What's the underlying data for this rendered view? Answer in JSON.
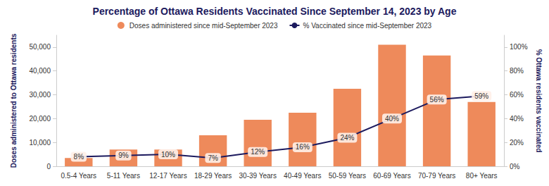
{
  "chart_data": {
    "type": "bar",
    "title": "Percentage of Ottawa Residents Vaccinated Since September 14, 2023 by Age",
    "y_label": "Doses administered to Ottawa residents",
    "y2_label": "% Ottawa residents vaccinated",
    "categories": [
      "0.5-4 Years",
      "5-11 Years",
      "12-17 Years",
      "18-29 Years",
      "30-39 Years",
      "40-49 Years",
      "50-59 Years",
      "60-69 Years",
      "70-79 Years",
      "80+ Years"
    ],
    "series": [
      {
        "name": "Doses administered since mid-September 2023",
        "type": "bar",
        "color": "#ee8a5b",
        "values": [
          3500,
          7000,
          7000,
          13000,
          19500,
          22500,
          32500,
          51000,
          46500,
          27000
        ]
      },
      {
        "name": "% Vaccinated since mid-September 2023",
        "type": "line",
        "axis": "y2",
        "color": "#1c1a5e",
        "marker": "circle",
        "line_style": "solid",
        "data_labels": true,
        "values": [
          8,
          9,
          10,
          7,
          12,
          16,
          24,
          40,
          56,
          59
        ],
        "value_labels": [
          "8%",
          "9%",
          "10%",
          "7%",
          "12%",
          "16%",
          "24%",
          "40%",
          "56%",
          "59%"
        ]
      }
    ],
    "ylim": [
      0,
      55000
    ],
    "yticks": [
      0,
      {
        "value": 10000,
        "label": "10,000"
      },
      {
        "value": 20000,
        "label": "20,000"
      },
      {
        "value": 30000,
        "label": "30,000"
      },
      {
        "value": 40000,
        "label": "40,000"
      },
      {
        "value": 50000,
        "label": "50,000"
      }
    ],
    "y2lim": [
      0,
      110
    ],
    "y2ticks": [
      {
        "value": 0,
        "label": "0%"
      },
      {
        "value": 20,
        "label": "20%"
      },
      {
        "value": 40,
        "label": "40%"
      },
      {
        "value": 60,
        "label": "60%"
      },
      {
        "value": 80,
        "label": "80%"
      },
      {
        "value": 100,
        "label": "100%"
      }
    ],
    "grid": false,
    "legend": "top"
  }
}
